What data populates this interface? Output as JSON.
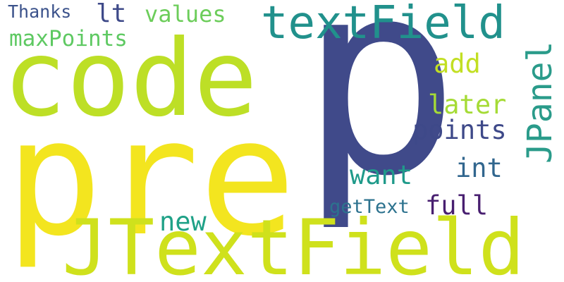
{
  "words": [
    {
      "text": "p",
      "color": "#404a8a",
      "weight": 1
    },
    {
      "text": "pre",
      "color": "#f3e51f",
      "weight": 2
    },
    {
      "text": "code",
      "color": "#bddf26",
      "weight": 3
    },
    {
      "text": "JTextField",
      "color": "#cfe11c",
      "weight": 4
    },
    {
      "text": "textField",
      "color": "#21918c",
      "weight": 5
    },
    {
      "text": "JPanel",
      "color": "#2a9b8a",
      "weight": 6
    },
    {
      "text": "values",
      "color": "#6ccd5a",
      "weight": 7
    },
    {
      "text": "maxPoints",
      "color": "#5ec962",
      "weight": 8
    },
    {
      "text": "Thanks",
      "color": "#3b528b",
      "weight": 9
    },
    {
      "text": "lt",
      "color": "#3e4a89",
      "weight": 10
    },
    {
      "text": "add",
      "color": "#c2df23",
      "weight": 11
    },
    {
      "text": "later",
      "color": "#a5db36",
      "weight": 12
    },
    {
      "text": "points",
      "color": "#3e4989",
      "weight": 13
    },
    {
      "text": "int",
      "color": "#31668e",
      "weight": 14
    },
    {
      "text": "want",
      "color": "#1f9a8a",
      "weight": 15
    },
    {
      "text": "new",
      "color": "#1fa187",
      "weight": 16
    },
    {
      "text": "getText",
      "color": "#2c728e",
      "weight": 17
    },
    {
      "text": "full",
      "color": "#481f70",
      "weight": 18
    }
  ]
}
